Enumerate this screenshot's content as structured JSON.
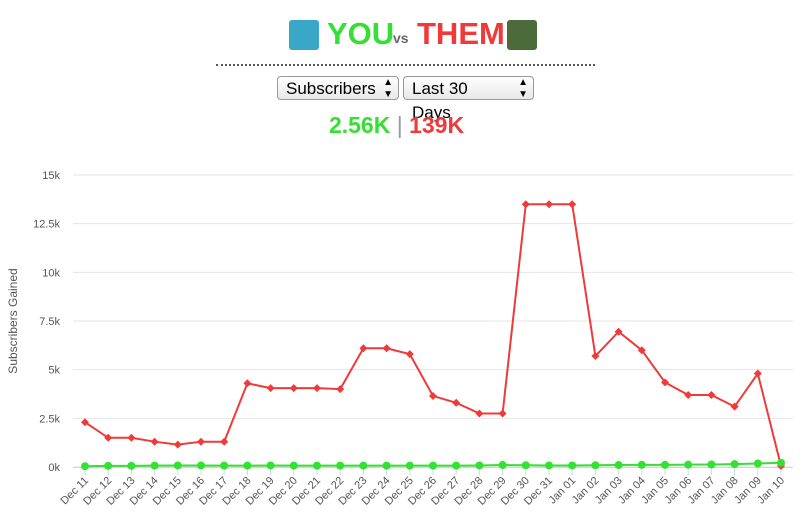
{
  "header": {
    "you": "YOU",
    "vs": "vs",
    "them": "THEM"
  },
  "controls": {
    "metric": "Subscribers",
    "range": "Last 30 Days"
  },
  "totals": {
    "you": "2.56K",
    "separator": "|",
    "them": "139K"
  },
  "chart_data": {
    "type": "line",
    "y_label": "Subscribers Gained",
    "categories": [
      "Dec 11",
      "Dec 12",
      "Dec 13",
      "Dec 14",
      "Dec 15",
      "Dec 16",
      "Dec 17",
      "Dec 18",
      "Dec 19",
      "Dec 20",
      "Dec 21",
      "Dec 22",
      "Dec 23",
      "Dec 24",
      "Dec 25",
      "Dec 26",
      "Dec 27",
      "Dec 28",
      "Dec 29",
      "Dec 30",
      "Dec 31",
      "Jan 01",
      "Jan 02",
      "Jan 03",
      "Jan 04",
      "Jan 05",
      "Jan 06",
      "Jan 07",
      "Jan 08",
      "Jan 09",
      "Jan 10"
    ],
    "series": [
      {
        "color": "#f03a3a",
        "marker": "diamond",
        "values": [
          2300,
          1500,
          1500,
          1300,
          1150,
          1300,
          1300,
          4300,
          4050,
          4050,
          4050,
          4000,
          6100,
          6100,
          5800,
          3650,
          3300,
          2750,
          2750,
          13500,
          13500,
          13500,
          5700,
          6950,
          6000,
          4350,
          3700,
          3700,
          3100,
          4800,
          50
        ]
      },
      {
        "color": "#33e033",
        "marker": "circle",
        "values": [
          40,
          60,
          60,
          70,
          80,
          80,
          70,
          70,
          80,
          70,
          70,
          70,
          70,
          70,
          70,
          70,
          70,
          80,
          100,
          90,
          80,
          80,
          90,
          100,
          110,
          110,
          120,
          130,
          150,
          180,
          220
        ]
      }
    ],
    "ylim": [
      0,
      15000
    ],
    "yticks": [
      {
        "value": 0,
        "label": "0k"
      },
      {
        "value": 2500,
        "label": "2.5k"
      },
      {
        "value": 5000,
        "label": "5k"
      },
      {
        "value": 7500,
        "label": "7.5k"
      },
      {
        "value": 10000,
        "label": "10k"
      },
      {
        "value": 12500,
        "label": "12.5k"
      },
      {
        "value": 15000,
        "label": "15k"
      }
    ],
    "grid": true
  }
}
